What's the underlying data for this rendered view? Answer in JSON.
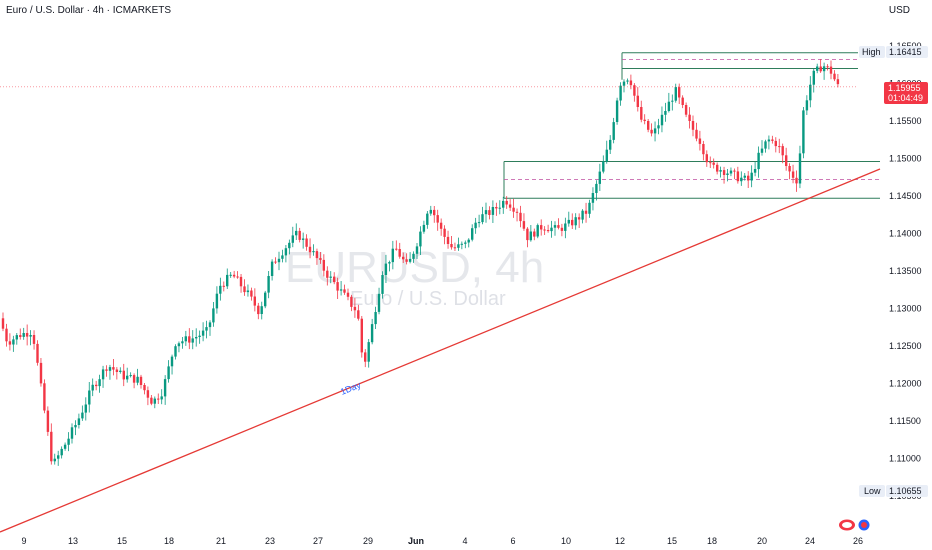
{
  "header": {
    "title": "Euro / U.S. Dollar · 4h · ICMARKETS",
    "currency": "USD"
  },
  "watermark": {
    "symbol": "EURUSD, 4h",
    "name": "Euro / U.S. Dollar"
  },
  "price_tags": {
    "high_label": "High",
    "high_value": "1.16415",
    "low_label": "Low",
    "low_value": "1.10655",
    "last_value": "1.15955",
    "countdown": "01:04:49"
  },
  "annotations": {
    "trendline_label": "1Day"
  },
  "colors": {
    "bull": "#089981",
    "bear": "#f23645",
    "trendline": "#e53935",
    "zone": "#2e7d5b",
    "zone_dash": "#c04ea0",
    "last_price": "#f23645",
    "tag_bg": "#e9eef7"
  },
  "chart_data": {
    "type": "candlestick",
    "symbol": "EURUSD",
    "interval": "4h",
    "ylim": [
      1.1025,
      1.1665
    ],
    "y_ticks": [
      "1.16500",
      "1.16000",
      "1.15500",
      "1.15000",
      "1.14500",
      "1.14000",
      "1.13500",
      "1.13000",
      "1.12500",
      "1.12000",
      "1.11500",
      "1.11000",
      "1.10500"
    ],
    "x_ticks": [
      "9",
      "13",
      "15",
      "18",
      "21",
      "23",
      "27",
      "29",
      "Jun",
      "4",
      "6",
      "10",
      "12",
      "15",
      "18",
      "20",
      "24",
      "26"
    ],
    "last_price": 1.15955,
    "high": 1.16415,
    "low": 1.10655,
    "candles": [],
    "support_zone_low": [
      1.1447,
      1.1496,
      1.1472
    ],
    "resistance_zone_high": [
      1.162,
      1.1641,
      1.1632
    ],
    "trendline": {
      "from_value": 1.1025,
      "to_value": 1.149
    }
  }
}
